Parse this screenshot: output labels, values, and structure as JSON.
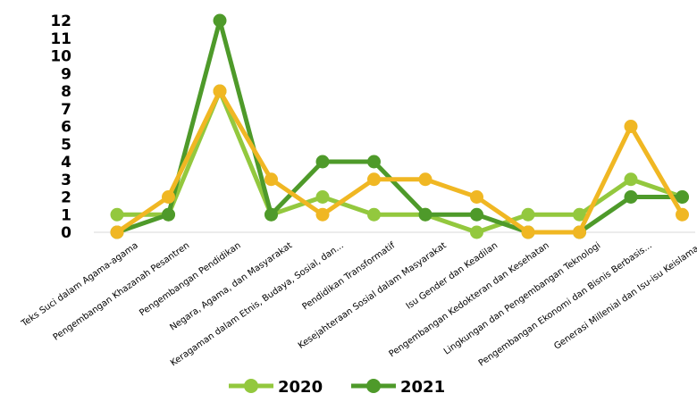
{
  "chart_data": {
    "type": "line",
    "categories": [
      "Teks Suci dalam Agama-agama",
      "Pengembangan Khazanah Pesantren",
      "Pengembangan Pendidikan",
      "Negara, Agama, dan Masyarakat",
      "Keragaman dalam Etnis, Budaya, Sosial, dan...",
      "Pendidikan Transformatif",
      "Kesejahteraan Sosial dalam Masyarakat",
      "Isu Gender dan Keadilan",
      "Pengembangan Kedokteran dan Kesehatan",
      "Lingkungan dan Pengembangan Teknologi",
      "Pengembangan Ekonomi dan Bisnis Berbasis...",
      "Generasi Millenial dan Isu-isu Keislaman"
    ],
    "series": [
      {
        "name": "2020",
        "color": "#93c83e",
        "values": [
          1,
          1,
          8,
          1,
          2,
          1,
          1,
          0,
          1,
          1,
          3,
          2
        ]
      },
      {
        "name": "2021",
        "color": "#4e9a2a",
        "values": [
          0,
          1,
          12,
          1,
          4,
          4,
          1,
          1,
          0,
          0,
          2,
          2
        ]
      },
      {
        "name": "",
        "color": "#f0b723",
        "values": [
          0,
          2,
          8,
          3,
          1,
          3,
          3,
          2,
          0,
          0,
          6,
          1
        ]
      }
    ],
    "yticks": [
      "0",
      "1",
      "2",
      "3",
      "4",
      "5",
      "6",
      "7",
      "8",
      "9",
      "10",
      "11",
      "12"
    ],
    "ylim": [
      0,
      12
    ],
    "title": "",
    "xlabel": "",
    "ylabel": "",
    "grid": false,
    "legend_position": "bottom"
  }
}
